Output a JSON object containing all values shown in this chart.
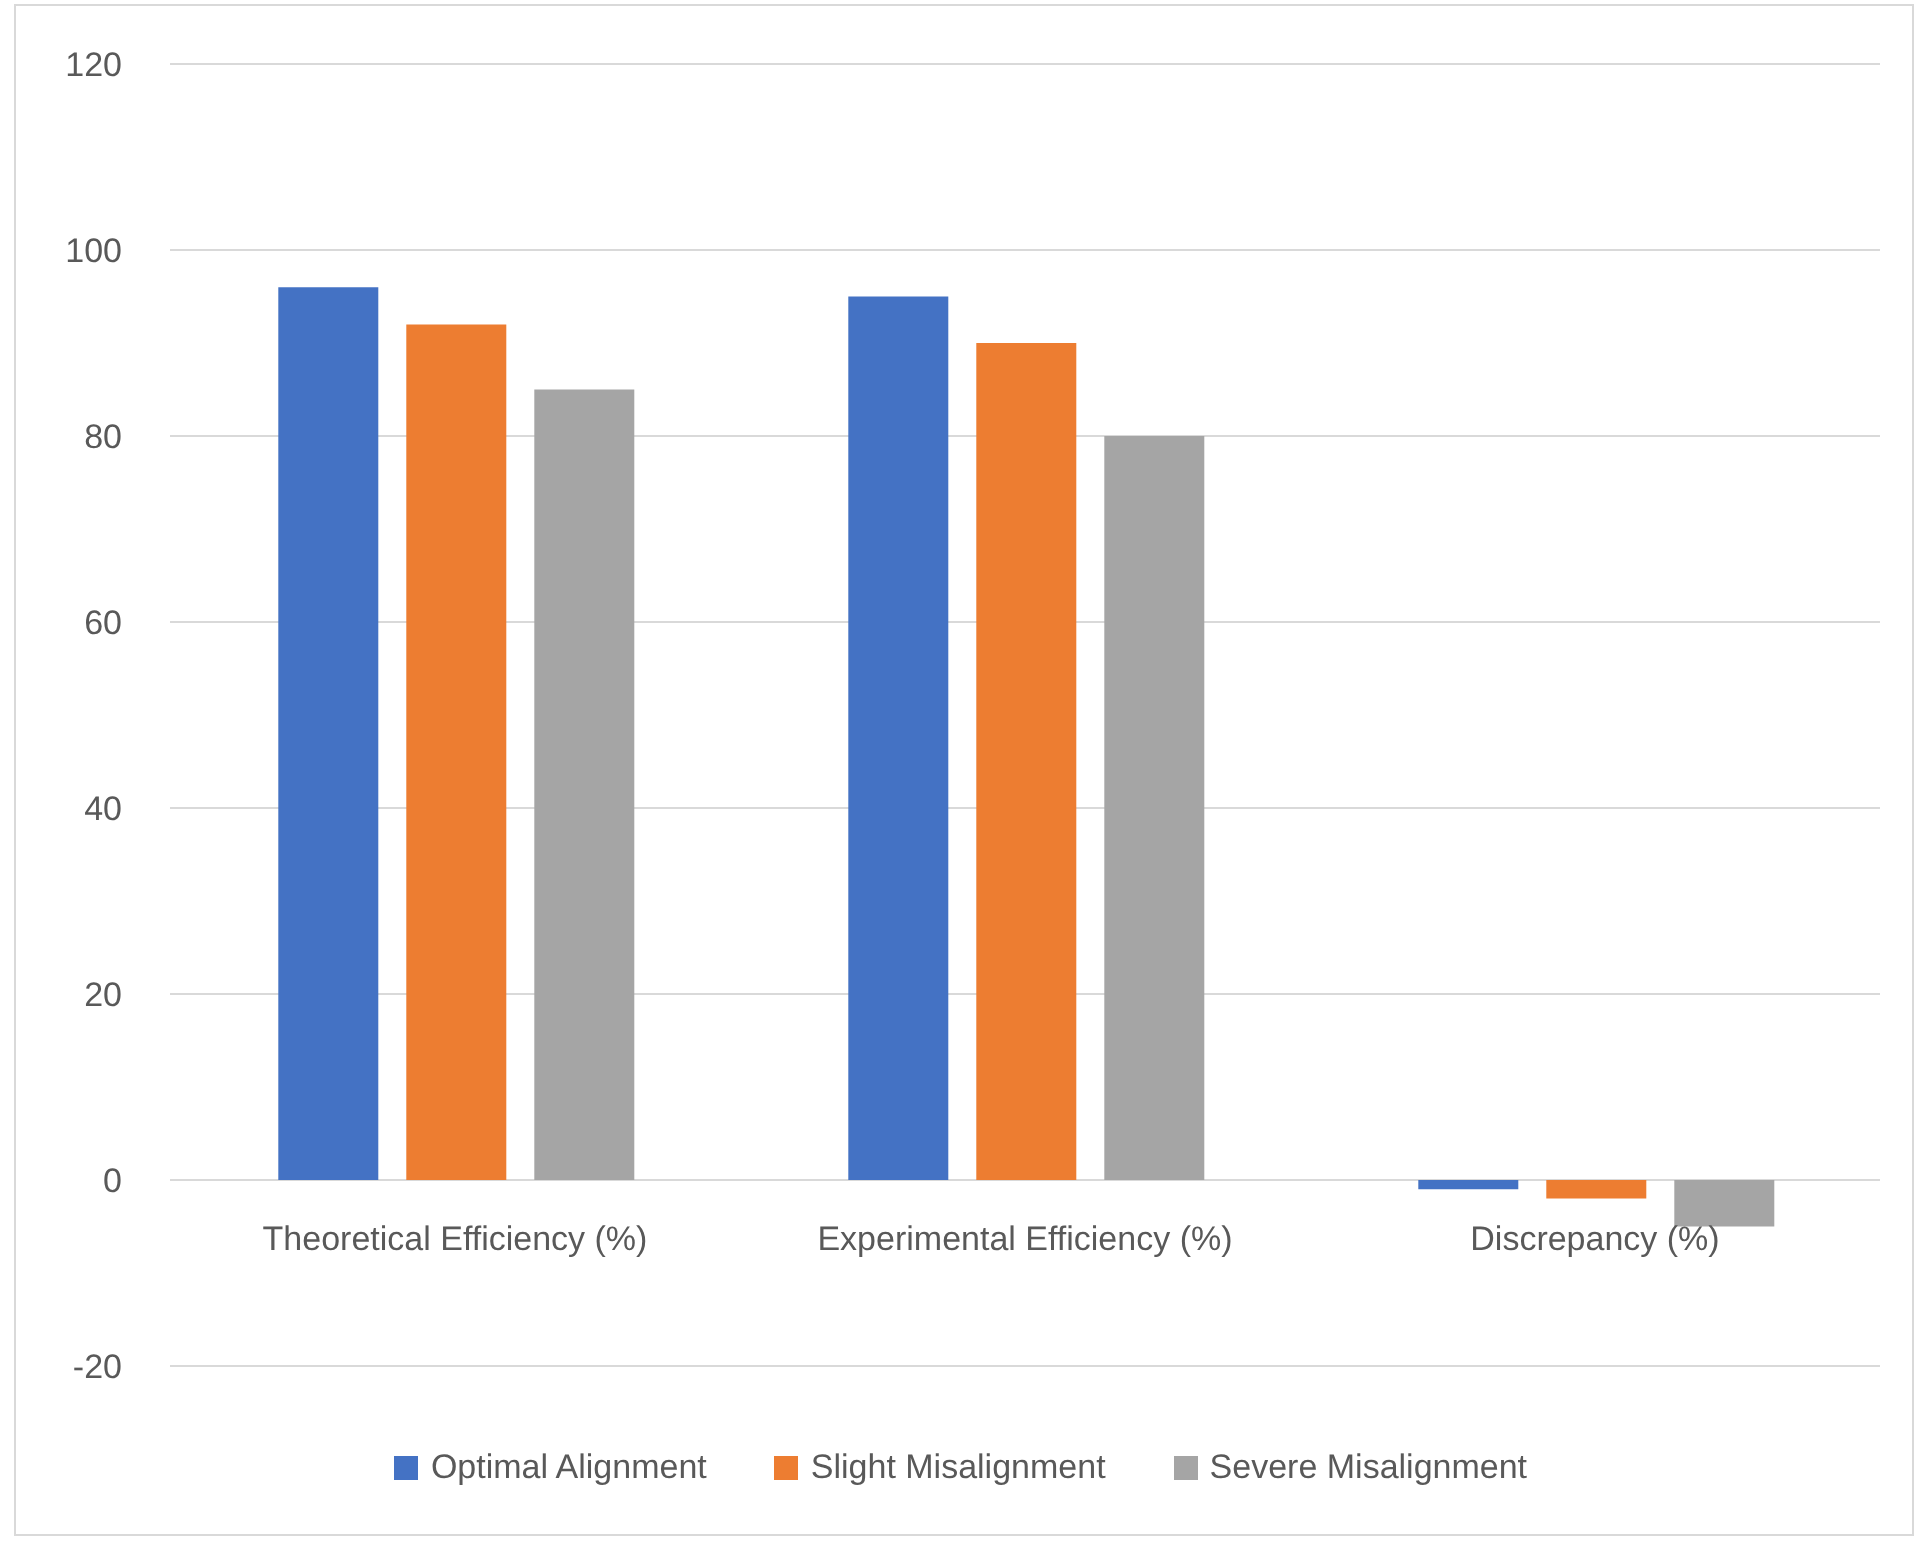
{
  "chart_data": {
    "type": "bar",
    "categories": [
      "Theoretical Efficiency (%)",
      "Experimental Efficiency (%)",
      "Discrepancy (%)"
    ],
    "series": [
      {
        "name": "Optimal Alignment",
        "color": "#4472c4",
        "values": [
          96,
          95,
          -1
        ]
      },
      {
        "name": "Slight Misalignment",
        "color": "#ed7d31",
        "values": [
          92,
          90,
          -2
        ]
      },
      {
        "name": "Severe Misalignment",
        "color": "#a5a5a5",
        "values": [
          85,
          80,
          -5
        ]
      }
    ],
    "ylim": [
      -20,
      120
    ],
    "yticks": [
      -20,
      0,
      20,
      40,
      60,
      80,
      100,
      120
    ],
    "grid": "y",
    "legend": "bottom"
  }
}
